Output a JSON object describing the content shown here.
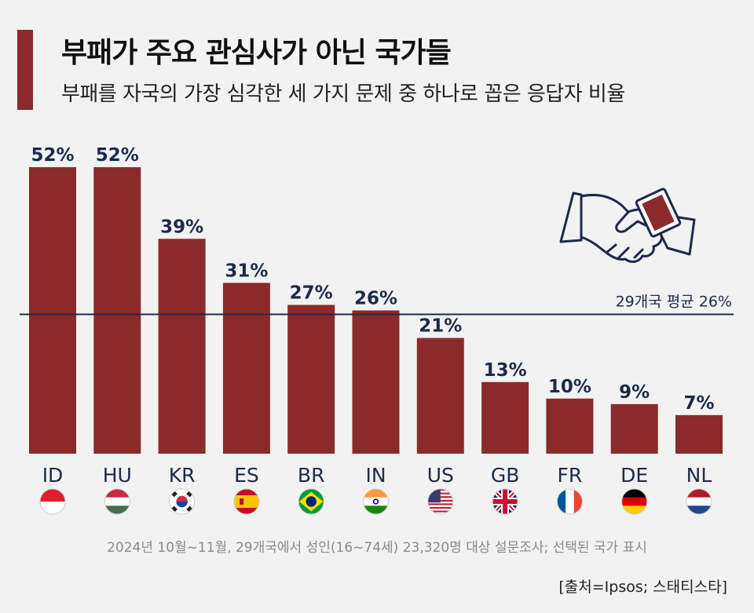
{
  "header": {
    "title": "부패가 주요 관심사가 아닌 국가들",
    "subtitle": "부패를 자국의 가장 심각한 세 가지 문제 중 하나로 꼽은 응답자 비율"
  },
  "chart_data": {
    "type": "bar",
    "categories": [
      "ID",
      "HU",
      "KR",
      "ES",
      "BR",
      "IN",
      "US",
      "GB",
      "FR",
      "DE",
      "NL"
    ],
    "values": [
      52,
      52,
      39,
      31,
      27,
      26,
      21,
      13,
      10,
      9,
      7
    ],
    "value_labels": [
      "52%",
      "52%",
      "39%",
      "31%",
      "27%",
      "26%",
      "21%",
      "13%",
      "10%",
      "9%",
      "7%"
    ],
    "ylim": [
      0,
      52
    ],
    "bar_color": "#8b2a2a",
    "average": {
      "value": 26,
      "label": "29개국 평균 26%",
      "color": "#1c2a4a"
    },
    "grid": false,
    "legend": "none"
  },
  "footer": {
    "note": "2024년 10월~11월, 29개국에서 성인(16~74세) 23,320명 대상 설문조사; 선택된 국가 표시",
    "source": "[출처=Ipsos; 스태티스타]"
  }
}
